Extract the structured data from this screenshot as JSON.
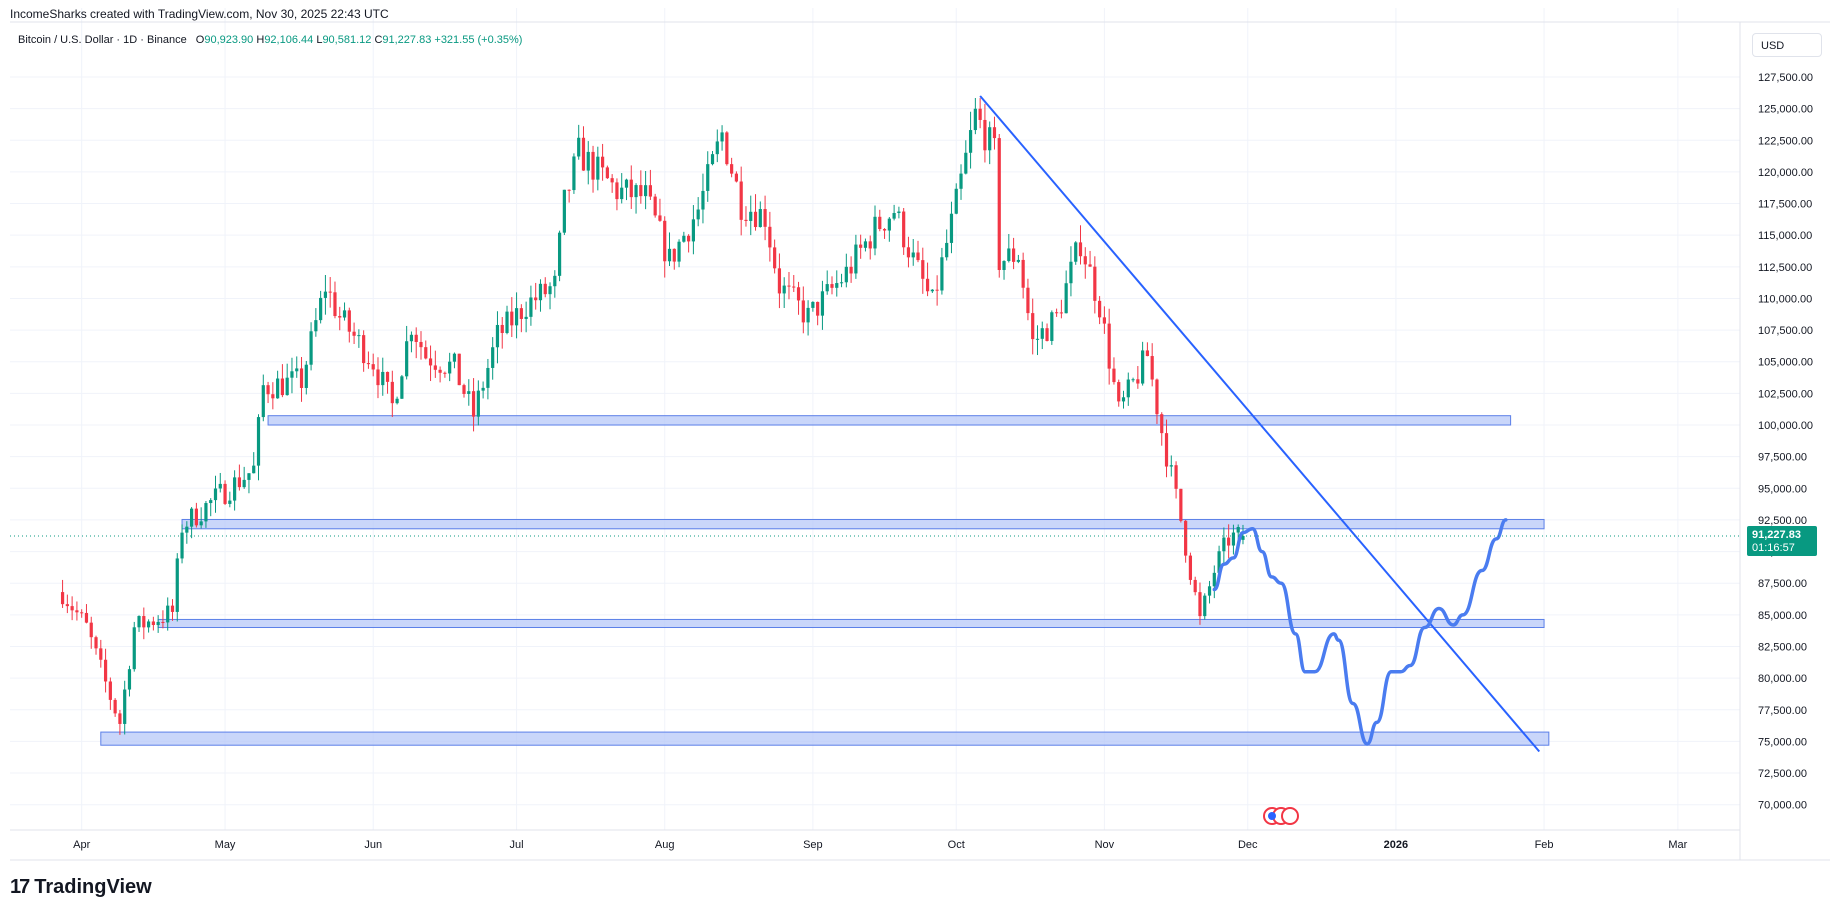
{
  "header": {
    "attribution": "IncomeSharks created with TradingView.com, Nov 30, 2025 22:43 UTC",
    "symbol": "Bitcoin / U.S. Dollar · 1D · Binance",
    "open_label": "O",
    "open_value": "90,923.90",
    "high_label": "H",
    "high_value": "92,106.44",
    "low_label": "L",
    "low_value": "90,581.12",
    "close_label": "C",
    "close_value": "91,227.83",
    "change": "+321.55 (+0.35%)"
  },
  "currency_button": "USD",
  "price_badge": {
    "price": "91,227.83",
    "countdown": "01:16:57"
  },
  "footer": {
    "brand": "TradingView",
    "brand_mark": "17"
  },
  "colors": {
    "up": "#089981",
    "down": "#f23645",
    "drawing": "#2962ff",
    "zone_fill": "#b2c5f8",
    "grid": "#f0f3fa"
  },
  "chart_data": {
    "type": "candlestick",
    "ylim": [
      68000,
      129000
    ],
    "y_ticks": [
      "70,000.00",
      "72,500.00",
      "75,000.00",
      "77,500.00",
      "80,000.00",
      "82,500.00",
      "85,000.00",
      "87,500.00",
      "90,000.00",
      "92,500.00",
      "95,000.00",
      "97,500.00",
      "100,000.00",
      "102,500.00",
      "105,000.00",
      "107,500.00",
      "110,000.00",
      "112,500.00",
      "115,000.00",
      "117,500.00",
      "120,000.00",
      "122,500.00",
      "125,000.00",
      "127,500.00"
    ],
    "x_ticks": [
      {
        "label": "Apr",
        "date": "2025-04-01"
      },
      {
        "label": "May",
        "date": "2025-05-01"
      },
      {
        "label": "Jun",
        "date": "2025-06-01"
      },
      {
        "label": "Jul",
        "date": "2025-07-01"
      },
      {
        "label": "Aug",
        "date": "2025-08-01"
      },
      {
        "label": "Sep",
        "date": "2025-09-01"
      },
      {
        "label": "Oct",
        "date": "2025-10-01"
      },
      {
        "label": "Nov",
        "date": "2025-11-01"
      },
      {
        "label": "Dec",
        "date": "2025-12-01"
      },
      {
        "label": "2026",
        "date": "2026-01-01"
      },
      {
        "label": "Feb",
        "date": "2026-02-01"
      },
      {
        "label": "Mar",
        "date": "2026-03-01"
      }
    ],
    "anchors": [
      {
        "date": "2025-03-28",
        "price": 86800
      },
      {
        "date": "2025-04-02",
        "price": 84000
      },
      {
        "date": "2025-04-07",
        "price": 78500
      },
      {
        "date": "2025-04-09",
        "price": 76500
      },
      {
        "date": "2025-04-12",
        "price": 84000
      },
      {
        "date": "2025-04-20",
        "price": 85200
      },
      {
        "date": "2025-04-22",
        "price": 92000
      },
      {
        "date": "2025-04-30",
        "price": 94500
      },
      {
        "date": "2025-05-07",
        "price": 96500
      },
      {
        "date": "2025-05-09",
        "price": 103000
      },
      {
        "date": "2025-05-17",
        "price": 103500
      },
      {
        "date": "2025-05-22",
        "price": 111000
      },
      {
        "date": "2025-05-25",
        "price": 108500
      },
      {
        "date": "2025-06-01",
        "price": 105000
      },
      {
        "date": "2025-06-05",
        "price": 101500
      },
      {
        "date": "2025-06-09",
        "price": 108000
      },
      {
        "date": "2025-06-12",
        "price": 105500
      },
      {
        "date": "2025-06-18",
        "price": 104500
      },
      {
        "date": "2025-06-22",
        "price": 100800
      },
      {
        "date": "2025-06-27",
        "price": 107000
      },
      {
        "date": "2025-07-03",
        "price": 109500
      },
      {
        "date": "2025-07-09",
        "price": 111000
      },
      {
        "date": "2025-07-11",
        "price": 117500
      },
      {
        "date": "2025-07-14",
        "price": 121500
      },
      {
        "date": "2025-07-22",
        "price": 118500
      },
      {
        "date": "2025-07-28",
        "price": 118000
      },
      {
        "date": "2025-08-02",
        "price": 113000
      },
      {
        "date": "2025-08-08",
        "price": 117000
      },
      {
        "date": "2025-08-13",
        "price": 123000
      },
      {
        "date": "2025-08-17",
        "price": 117500
      },
      {
        "date": "2025-08-22",
        "price": 116500
      },
      {
        "date": "2025-08-25",
        "price": 111000
      },
      {
        "date": "2025-08-31",
        "price": 108500
      },
      {
        "date": "2025-09-08",
        "price": 112000
      },
      {
        "date": "2025-09-14",
        "price": 115500
      },
      {
        "date": "2025-09-18",
        "price": 117000
      },
      {
        "date": "2025-09-22",
        "price": 113000
      },
      {
        "date": "2025-09-26",
        "price": 109500
      },
      {
        "date": "2025-10-01",
        "price": 117500
      },
      {
        "date": "2025-10-05",
        "price": 124500
      },
      {
        "date": "2025-10-09",
        "price": 121500
      },
      {
        "date": "2025-10-10",
        "price": 113000
      },
      {
        "date": "2025-10-14",
        "price": 113500
      },
      {
        "date": "2025-10-17",
        "price": 106500
      },
      {
        "date": "2025-10-22",
        "price": 108500
      },
      {
        "date": "2025-10-27",
        "price": 114500
      },
      {
        "date": "2025-10-31",
        "price": 109500
      },
      {
        "date": "2025-11-04",
        "price": 101000
      },
      {
        "date": "2025-11-10",
        "price": 105500
      },
      {
        "date": "2025-11-13",
        "price": 99500
      },
      {
        "date": "2025-11-17",
        "price": 92500
      },
      {
        "date": "2025-11-21",
        "price": 84500
      },
      {
        "date": "2025-11-24",
        "price": 88500
      },
      {
        "date": "2025-11-27",
        "price": 91000
      },
      {
        "date": "2025-11-30",
        "price": 91227.83
      }
    ],
    "last_price": 91227.83,
    "zones": [
      {
        "from": "2025-05-10",
        "to": "2026-01-25",
        "low": 100000,
        "high": 100500
      },
      {
        "from": "2025-04-22",
        "to": "2026-02-01",
        "low": 91800,
        "high": 92300
      },
      {
        "from": "2025-04-17",
        "to": "2026-02-01",
        "low": 84000,
        "high": 84400
      },
      {
        "from": "2025-04-05",
        "to": "2026-02-02",
        "low": 74700,
        "high": 75500
      }
    ],
    "trendline": {
      "from": {
        "date": "2025-10-06",
        "price": 126000
      },
      "to": {
        "date": "2026-01-31",
        "price": 74200
      }
    },
    "projection": [
      {
        "date": "2025-11-24",
        "price": 87000
      },
      {
        "date": "2025-11-26",
        "price": 89000
      },
      {
        "date": "2025-11-28",
        "price": 89500
      },
      {
        "date": "2025-11-30",
        "price": 91500
      },
      {
        "date": "2025-12-02",
        "price": 91800
      },
      {
        "date": "2025-12-04",
        "price": 90000
      },
      {
        "date": "2025-12-06",
        "price": 88000
      },
      {
        "date": "2025-12-08",
        "price": 87500
      },
      {
        "date": "2025-12-11",
        "price": 83500
      },
      {
        "date": "2025-12-13",
        "price": 80500
      },
      {
        "date": "2025-12-15",
        "price": 80500
      },
      {
        "date": "2025-12-19",
        "price": 83500
      },
      {
        "date": "2025-12-20",
        "price": 83000
      },
      {
        "date": "2025-12-23",
        "price": 78000
      },
      {
        "date": "2025-12-26",
        "price": 74800
      },
      {
        "date": "2025-12-28",
        "price": 76500
      },
      {
        "date": "2025-12-31",
        "price": 80500
      },
      {
        "date": "2026-01-02",
        "price": 80500
      },
      {
        "date": "2026-01-04",
        "price": 81000
      },
      {
        "date": "2026-01-07",
        "price": 84000
      },
      {
        "date": "2026-01-10",
        "price": 85500
      },
      {
        "date": "2026-01-13",
        "price": 84200
      },
      {
        "date": "2026-01-15",
        "price": 85000
      },
      {
        "date": "2026-01-19",
        "price": 88500
      },
      {
        "date": "2026-01-22",
        "price": 91000
      },
      {
        "date": "2026-01-24",
        "price": 92500
      }
    ]
  }
}
